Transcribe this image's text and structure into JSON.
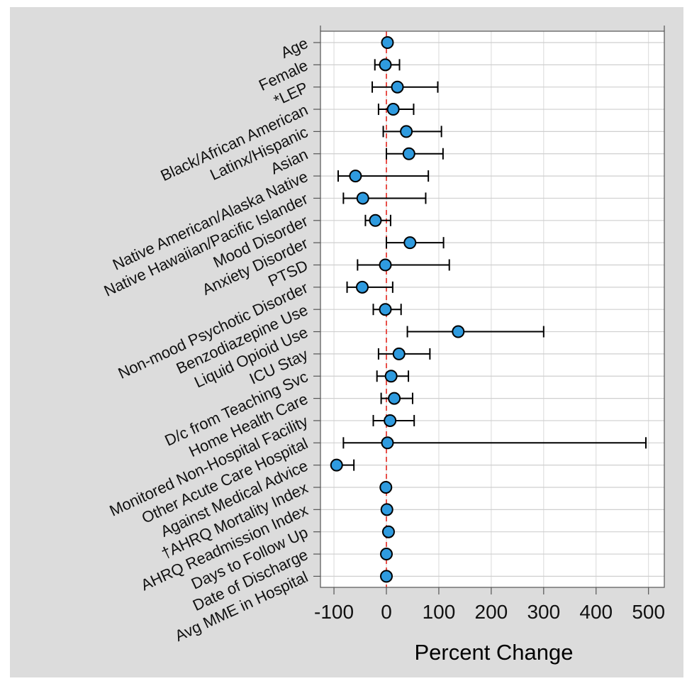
{
  "chart_data": {
    "type": "scatter",
    "subtype": "forest-plot",
    "title": "",
    "xlabel": "Percent Change",
    "ylabel": "",
    "xlim": [
      -130,
      530
    ],
    "xticks": [
      -100,
      0,
      100,
      200,
      300,
      400,
      500
    ],
    "xtick_labels": [
      "-100",
      "0",
      "100",
      "200",
      "300",
      "400",
      "500"
    ],
    "reference_line": 0,
    "grid": true,
    "colors": {
      "marker_fill": "#2f9bdf",
      "marker_edge": "#000000",
      "reference_line": "#e8504a",
      "figure_background": "#dcdcdc",
      "plot_background": "#ffffff"
    },
    "series": [
      {
        "categories": [
          "Age",
          "Female",
          "*LEP",
          "Black/African American",
          "Latinx/Hispanic",
          "Asian",
          "Native American/Alaska Native",
          "Native Hawaiian/Pacific Islander",
          "Mood Disorder",
          "Anxiety Disorder",
          "PTSD",
          "Non-mood Psychotic Disorder",
          "Benzodiazepine Use",
          "Liquid Opioid Use",
          "ICU Stay",
          "D/c from Teaching Svc",
          "Home Health Care",
          "Monitored Non-Hospital Facility",
          "Other Acute Care Hospital",
          "Against Medical Advice",
          "†AHRQ Mortality Index",
          "AHRQ Readmission Index",
          "Days to Follow Up",
          "Date of Discharge",
          "Avg MME in Hospital"
        ],
        "estimate": [
          2,
          -2,
          21,
          13,
          38,
          43,
          -59,
          -45,
          -21,
          45,
          -2,
          -46,
          -2,
          137,
          24,
          9,
          15,
          7,
          2,
          -95,
          -1,
          1,
          4,
          0,
          0
        ],
        "ci_lower": [
          0,
          -22,
          -27,
          -15,
          -6,
          0,
          -92,
          -82,
          -40,
          0,
          -55,
          -75,
          -25,
          40,
          -15,
          -18,
          -10,
          -25,
          -82,
          -100,
          -3,
          -2,
          0,
          -3,
          -2
        ],
        "ci_upper": [
          4,
          25,
          98,
          52,
          105,
          108,
          80,
          75,
          8,
          109,
          120,
          12,
          28,
          300,
          83,
          42,
          50,
          53,
          495,
          -62,
          1,
          4,
          8,
          3,
          2
        ]
      }
    ]
  }
}
